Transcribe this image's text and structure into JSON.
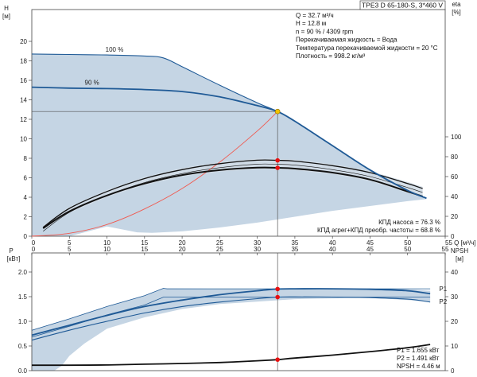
{
  "chart_data": [
    {
      "type": "line",
      "title": "TPE3 D 65-180-S, 3*460 V",
      "xlabel": "Q [м³/ч]",
      "xlim": [
        0,
        55
      ],
      "x_ticks": [
        "0",
        "5",
        "10",
        "15",
        "20",
        "25",
        "30",
        "35",
        "40",
        "45",
        "50",
        "55 Q [м³/ч]"
      ],
      "left_axis": {
        "label": "H",
        "unit": "[м]",
        "ylim": [
          0,
          20
        ],
        "ticks": [
          "0",
          "2",
          "4",
          "6",
          "8",
          "10",
          "12",
          "14",
          "16",
          "18",
          "20"
        ]
      },
      "right_axis": {
        "label": "eta",
        "unit": "[%]",
        "ylim": [
          0,
          100
        ],
        "ticks": [
          "0",
          "20",
          "40",
          "60",
          "80",
          "100"
        ]
      },
      "operating_info": [
        "Q = 32.7 м³/ч",
        "H = 12.8 м",
        "n = 90 % / 4309 rpm",
        "Перекачиваемая жидкость = Вода",
        "Температура перекачиваемой жидкости = 20 °C",
        "Плотность = 998.2 кг/м³"
      ],
      "efficiency_info": [
        "КПД насоса = 76.3 %",
        "КПД агрег+КПД преобр. частоты = 68.8 %"
      ],
      "series": [
        {
          "name": "100 %",
          "axis": "H",
          "x": [
            0,
            5,
            10,
            15,
            17.5,
            20,
            25,
            30,
            32.7,
            35,
            40,
            45,
            50,
            52.5
          ],
          "y": [
            18.7,
            18.65,
            18.6,
            18.5,
            18.3,
            17.4,
            15.5,
            13.7,
            12.8,
            11.8,
            9.3,
            6.8,
            4.7,
            3.9
          ]
        },
        {
          "name": "90 %",
          "axis": "H",
          "x": [
            0,
            5,
            10,
            15,
            20,
            25,
            30,
            32.7,
            35,
            40,
            45,
            50,
            52.5
          ],
          "y": [
            15.3,
            15.2,
            15.15,
            15.05,
            14.85,
            14.3,
            13.4,
            12.8,
            11.8,
            9.3,
            6.8,
            4.7,
            3.9
          ]
        },
        {
          "name": "",
          "axis": "H",
          "x": [
            0,
            5,
            10,
            15,
            20,
            25,
            30,
            32.7
          ],
          "y": [
            0,
            0.3,
            1.2,
            2.8,
            4.9,
            7.6,
            10.8,
            12.8
          ]
        },
        {
          "name": "",
          "axis": "eta",
          "x": [
            1.5,
            5,
            10,
            15,
            20,
            25,
            30,
            32.7,
            35,
            40,
            45,
            50,
            52
          ],
          "y": [
            9,
            28,
            45,
            58,
            67,
            73,
            76.5,
            76.3,
            75.5,
            71,
            64,
            53,
            48
          ]
        },
        {
          "name": "",
          "axis": "eta",
          "x": [
            1.5,
            5,
            10,
            15,
            20,
            25,
            30,
            32.7,
            35,
            40,
            45,
            50,
            52
          ],
          "y": [
            8,
            25,
            41,
            53,
            61.5,
            66.5,
            69,
            68.8,
            68,
            64,
            57,
            45,
            40
          ]
        }
      ],
      "markers": [
        {
          "axis": "H",
          "x": 32.7,
          "y": 12.8,
          "color": "#f2c200"
        },
        {
          "axis": "eta",
          "x": 32.7,
          "y": 76.3,
          "color": "#e81010"
        },
        {
          "axis": "eta",
          "x": 32.7,
          "y": 68.8,
          "color": "#e81010"
        }
      ],
      "colors": {
        "band": "#c5d5e4",
        "curve": "#1f5a96",
        "system": "#f05a50",
        "efficiency": "#111111"
      }
    },
    {
      "type": "line",
      "xlim": [
        0,
        55
      ],
      "x_ticks": [
        "0",
        "5",
        "10",
        "15",
        "20",
        "25",
        "30",
        "35",
        "40",
        "45",
        "50",
        "55"
      ],
      "left_axis": {
        "label": "P",
        "unit": "[кВт]",
        "ylim": [
          0,
          2.0
        ],
        "ticks": [
          "0.0",
          "0.5",
          "1.0",
          "1.5",
          "2.0"
        ]
      },
      "right_axis": {
        "label": "NPSH",
        "unit": "[м]",
        "ylim": [
          0,
          40
        ],
        "ticks": [
          "0",
          "10",
          "20",
          "30",
          "40"
        ]
      },
      "power_info": [
        "P1 = 1.655 кВт",
        "P2 = 1.491 кВт",
        "NPSH = 4.46 м"
      ],
      "series": [
        {
          "name": "P1",
          "axis": "P",
          "x": [
            0,
            5,
            10,
            15,
            20,
            25,
            30,
            32.7,
            35,
            40,
            45,
            50,
            53
          ],
          "y": [
            0.72,
            0.92,
            1.12,
            1.3,
            1.43,
            1.54,
            1.62,
            1.655,
            1.66,
            1.66,
            1.65,
            1.62,
            1.56
          ]
        },
        {
          "name": "P2",
          "axis": "P",
          "x": [
            0,
            5,
            10,
            15,
            20,
            25,
            30,
            32.7,
            35,
            40,
            45,
            50,
            53
          ],
          "y": [
            0.62,
            0.82,
            1.0,
            1.17,
            1.3,
            1.39,
            1.46,
            1.491,
            1.495,
            1.49,
            1.48,
            1.45,
            1.39
          ]
        },
        {
          "name": "",
          "axis": "NPSH",
          "x": [
            0,
            5,
            10,
            15,
            20,
            25,
            30,
            32.7,
            35,
            40,
            45,
            50,
            53
          ],
          "y": [
            2.2,
            2.2,
            2.3,
            2.6,
            2.9,
            3.3,
            4.0,
            4.46,
            5.1,
            6.3,
            7.7,
            9.3,
            10.6
          ]
        }
      ],
      "markers": [
        {
          "axis": "P",
          "x": 32.7,
          "y": 1.655,
          "color": "#e81010"
        },
        {
          "axis": "P",
          "x": 32.7,
          "y": 1.491,
          "color": "#e81010"
        },
        {
          "axis": "NPSH",
          "x": 32.7,
          "y": 4.46,
          "color": "#e81010"
        }
      ]
    }
  ]
}
